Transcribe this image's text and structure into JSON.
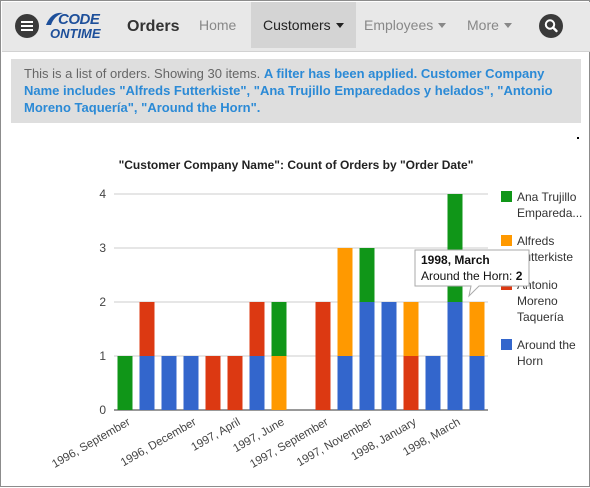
{
  "header": {
    "logo_line1": "CODE",
    "logo_line2": "ONTIME",
    "title": "Orders",
    "nav": [
      {
        "label": "Home",
        "dropdown": false,
        "active": false
      },
      {
        "label": "Customers",
        "dropdown": true,
        "active": true
      },
      {
        "label": "Employees",
        "dropdown": true,
        "active": false
      },
      {
        "label": "More",
        "dropdown": true,
        "active": false
      }
    ],
    "icons": {
      "menu": "hamburger-icon",
      "search": "search-icon"
    }
  },
  "info": {
    "text": "This is a list of orders. Showing 30 items.",
    "filter": "A filter has been applied. Customer Company Name includes \"Alfreds Futterkiste\", \"Ana Trujillo Emparedados y helados\", \"Antonio Moreno Taquería\", \"Around the Horn\"."
  },
  "colors": {
    "ana": "#109618",
    "alfreds": "#ff9900",
    "antonio": "#dc3912",
    "around": "#3366cc",
    "link": "#2b8ad6"
  },
  "tooltip": {
    "title": "1998, March",
    "label": "Around the Horn:",
    "value": "2"
  },
  "chart_data": {
    "type": "bar",
    "stacked": true,
    "title": "\"Customer Company Name\": Count of Orders by \"Order Date\"",
    "ylim": [
      0,
      4
    ],
    "yticks": [
      "0",
      "1",
      "2",
      "3",
      "4"
    ],
    "xtick_labels": [
      "1996, September",
      "1996, December",
      "1997, April",
      "1997, June",
      "1997, September",
      "1997, November",
      "1998, January",
      "1998, March"
    ],
    "categories": [
      "1996, September",
      "1996, October",
      "1996, November",
      "1996, December",
      "1997, February",
      "1997, April",
      "1997, May",
      "1997, June",
      "1997, August",
      "1997, September",
      "1997, October",
      "1997, November",
      "1997, December",
      "1998, January",
      "1998, February",
      "1998, March",
      "1998, April"
    ],
    "series": [
      {
        "name": "Around the Horn",
        "color": "#3366cc",
        "values": [
          0,
          1,
          1,
          1,
          0,
          0,
          1,
          0,
          0,
          0,
          1,
          2,
          2,
          0,
          1,
          2,
          1
        ]
      },
      {
        "name": "Antonio Moreno Taquería",
        "color": "#dc3912",
        "values": [
          0,
          1,
          0,
          0,
          1,
          1,
          1,
          0,
          0,
          2,
          0,
          0,
          0,
          1,
          0,
          0,
          0
        ]
      },
      {
        "name": "Alfreds Futterkiste",
        "color": "#ff9900",
        "values": [
          0,
          0,
          0,
          0,
          0,
          0,
          0,
          1,
          0,
          0,
          2,
          0,
          0,
          1,
          0,
          0,
          1
        ]
      },
      {
        "name": "Ana Trujillo Emparedados y helados",
        "color": "#109618",
        "values": [
          1,
          0,
          0,
          0,
          0,
          0,
          0,
          1,
          0,
          0,
          0,
          1,
          0,
          0,
          0,
          2,
          0
        ]
      }
    ],
    "legend": [
      {
        "lines": [
          "Ana Trujillo",
          "Empareda..."
        ],
        "color": "#109618"
      },
      {
        "lines": [
          "Alfreds",
          "Futterkiste"
        ],
        "color": "#ff9900"
      },
      {
        "lines": [
          "Antonio",
          "Moreno",
          "Taquería"
        ],
        "color": "#dc3912"
      },
      {
        "lines": [
          "Around the",
          "Horn"
        ],
        "color": "#3366cc"
      }
    ],
    "legend_position": "right",
    "grid": true
  }
}
